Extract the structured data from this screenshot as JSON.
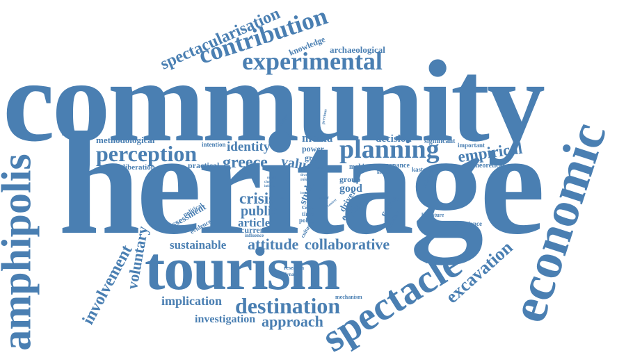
{
  "color": "#4a7fb2",
  "background": "#ffffff",
  "words": {
    "community": "community",
    "heritage": "heritage",
    "tourism": "tourism",
    "economic": "economic",
    "amphipolis": "amphipolis",
    "spectacle": "spectacle",
    "planning": "planning",
    "destination": "destination",
    "contribution": "contribution",
    "experimental": "experimental",
    "perception": "perception",
    "spectacularisation": "spectacularisation",
    "excavation": "excavation",
    "empirical": "empirical",
    "involvement": "involvement",
    "voluntary": "voluntary",
    "collaborative": "collaborative",
    "attitude": "attitude",
    "sustainable": "sustainable",
    "approach": "approach",
    "implication": "implication",
    "investigation": "investigation",
    "identity": "identity",
    "greece": "greece",
    "crisis": "crisis",
    "public": "public",
    "article": "article",
    "value": "value",
    "media": "media",
    "methodological": "methodological",
    "decision": "decision",
    "knowledge": "knowledge",
    "archaeological": "archaeological",
    "significant": "significant",
    "important": "important",
    "theoretical": "theoretical",
    "deliberation": "deliberation",
    "practical": "practical",
    "intention": "intention",
    "power": "power",
    "greek": "greek",
    "making": "making",
    "governance": "governance",
    "kastoria": "kastoria",
    "collective": "collective",
    "group": "group",
    "good": "good",
    "explore": "explore",
    "driver": "driver",
    "study": "study",
    "case": "case",
    "time": "time",
    "policy": "policy",
    "cultural": "cultural",
    "current": "current",
    "influence": "influence",
    "political": "political",
    "assessment": "assessment",
    "evidence": "evidence",
    "experience": "experience",
    "literature": "literature",
    "finding": "finding",
    "conflict": "conflict",
    "research": "research",
    "dynamic": "dynamic",
    "mechanism": "mechanism",
    "limited": "limited",
    "analysis": "analysis",
    "previous": "previous",
    "paper": "paper",
    "context": "context",
    "role": "role",
    "detail": "detail",
    "inform": "inform",
    "moral": "moral",
    "choice": "choice",
    "more": "more",
    "draw": "draw",
    "issue": "issue",
    "base": "base",
    "lead": "lead",
    "need": "need",
    "self": "self",
    "level": "level"
  }
}
